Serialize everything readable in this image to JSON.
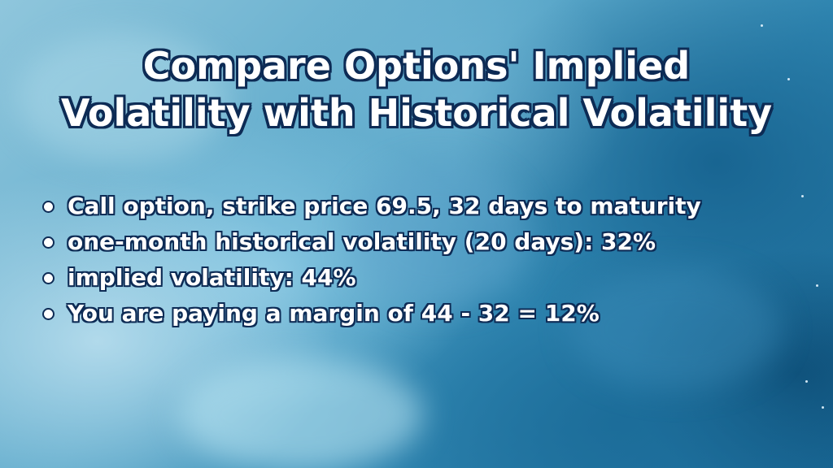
{
  "title": {
    "line1": "Compare Options' Implied",
    "line2": "Volatility with Historical Volatility"
  },
  "bullets": [
    {
      "text": "Call option, strike price 69.5, 32 days to maturity"
    },
    {
      "text": "one-month historical volatility (20 days): 32%"
    },
    {
      "text": "implied volatility: 44%"
    },
    {
      "text": "You are paying a margin of 44 - 32 = 12%"
    }
  ],
  "colors": {
    "text": "#ffffff",
    "outline": "#0d2b55",
    "background_light": "#8fc6dc",
    "background_dark": "#1a6a98"
  }
}
